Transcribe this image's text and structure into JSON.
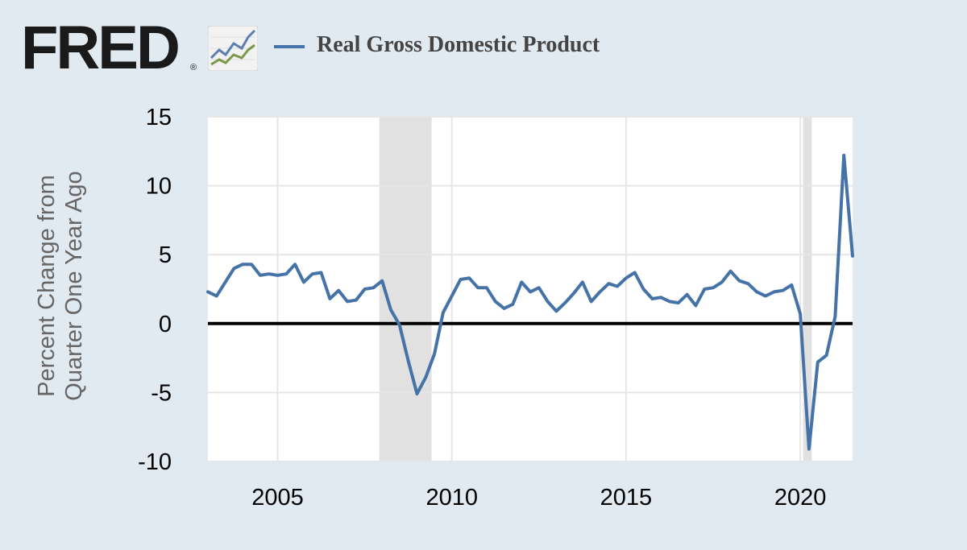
{
  "header": {
    "logo_text": "FRED",
    "logo_registered": "®",
    "logo_icon": "fred-chart-icon",
    "legend_label": "Real Gross Domestic Product"
  },
  "colors": {
    "background": "#e1e9f1",
    "plot_background": "#ffffff",
    "series_line": "#4572a7",
    "recession_band": "#e1e1e1",
    "zero_line": "#000000",
    "gridline": "#e6e6e6"
  },
  "chart_data": {
    "type": "line",
    "title": "",
    "ylabel_lines": [
      "Percent Change from",
      "Quarter One Year Ago"
    ],
    "xlabel": "",
    "ylim": [
      -10,
      15
    ],
    "xlim": [
      2003.0,
      2021.5
    ],
    "yticks": [
      "15",
      "10",
      "5",
      "0",
      "-5",
      "-10"
    ],
    "ytick_values": [
      15,
      10,
      5,
      0,
      -5,
      -10
    ],
    "xticks": [
      "2005",
      "2010",
      "2015",
      "2020"
    ],
    "xtick_values": [
      2005,
      2010,
      2015,
      2020
    ],
    "grid": true,
    "zero_line": true,
    "recessions": [
      [
        2007.92,
        2009.42
      ],
      [
        2020.08,
        2020.33
      ]
    ],
    "series": [
      {
        "name": "Real Gross Domestic Product",
        "x_start": 2003.0,
        "x_step": 0.25,
        "values": [
          2.3,
          2.0,
          3.0,
          4.0,
          4.3,
          4.3,
          3.5,
          3.6,
          3.5,
          3.6,
          4.3,
          3.0,
          3.6,
          3.7,
          1.8,
          2.4,
          1.6,
          1.7,
          2.5,
          2.6,
          3.1,
          1.0,
          -0.1,
          -2.7,
          -5.1,
          -3.9,
          -2.2,
          0.8,
          2.0,
          3.2,
          3.3,
          2.6,
          2.6,
          1.6,
          1.1,
          1.4,
          3.0,
          2.3,
          2.6,
          1.6,
          0.9,
          1.5,
          2.2,
          3.0,
          1.6,
          2.3,
          2.9,
          2.7,
          3.3,
          3.7,
          2.5,
          1.8,
          1.9,
          1.6,
          1.5,
          2.1,
          1.3,
          2.5,
          2.6,
          3.0,
          3.8,
          3.1,
          2.9,
          2.3,
          2.0,
          2.3,
          2.4,
          2.8,
          0.7,
          -9.1,
          -2.8,
          -2.3,
          0.5,
          12.2,
          4.9
        ]
      }
    ]
  }
}
